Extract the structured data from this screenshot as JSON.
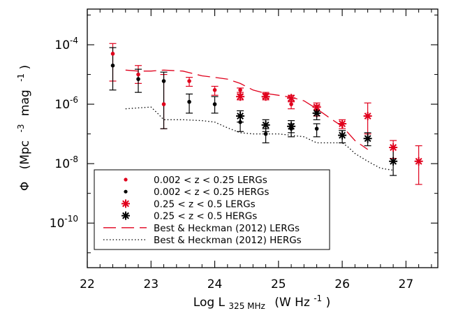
{
  "chart_data": {
    "type": "scatter",
    "x_axis": {
      "label_main": "Log L",
      "label_sub": "325 MHz",
      "label_unit": "(W Hz",
      "label_unit_sup": "-1",
      "label_unit_close": ")",
      "range": [
        22,
        27.5
      ],
      "ticks": [
        22,
        23,
        24,
        25,
        26,
        27
      ],
      "tick_labels": [
        "22",
        "23",
        "24",
        "25",
        "26",
        "27"
      ]
    },
    "y_axis": {
      "label_symbol": "Φ",
      "label_unit": "(Mpc",
      "label_exp1": "-3",
      "label_mid": "mag",
      "label_exp2": "-1",
      "label_close": ")",
      "scale": "log",
      "range_log10": [
        -11.5,
        -2.8
      ],
      "ticks_log10": [
        -10,
        -8,
        -6,
        -4
      ],
      "tick_label_base": "10",
      "tick_label_exps": [
        "-10",
        "-8",
        "-6",
        "-4"
      ]
    },
    "colors": {
      "red": "#e0001c",
      "black": "#000000"
    },
    "series": [
      {
        "name": "0.002 < z < 0.25 LERGs",
        "marker": "dot",
        "color": "#e0001c",
        "points": [
          {
            "x": 22.4,
            "y": 5e-05,
            "lo": 6e-06,
            "hi": 0.00011
          },
          {
            "x": 22.8,
            "y": 1e-05,
            "lo": 5e-06,
            "hi": 2e-05
          },
          {
            "x": 23.2,
            "y": 1e-06,
            "lo": 1.5e-07,
            "hi": 1e-05
          },
          {
            "x": 23.6,
            "y": 6e-06,
            "lo": 4e-06,
            "hi": 8e-06
          },
          {
            "x": 24.0,
            "y": 3e-06,
            "lo": 2e-06,
            "hi": 4e-06
          },
          {
            "x": 24.4,
            "y": 3e-06,
            "lo": 2.5e-06,
            "hi": 3.5e-06
          },
          {
            "x": 24.8,
            "y": 2e-06,
            "lo": 1.6e-06,
            "hi": 2.5e-06
          },
          {
            "x": 25.2,
            "y": 1e-06,
            "lo": 7e-07,
            "hi": 1.3e-06
          },
          {
            "x": 25.6,
            "y": 6e-07,
            "lo": 4e-07,
            "hi": 9e-07
          }
        ]
      },
      {
        "name": "0.002 < z < 0.25 HERGs",
        "marker": "dot",
        "color": "#000000",
        "points": [
          {
            "x": 22.4,
            "y": 2e-05,
            "lo": 3e-06,
            "hi": 8e-05
          },
          {
            "x": 22.8,
            "y": 7e-06,
            "lo": 2.5e-06,
            "hi": 1.5e-05
          },
          {
            "x": 23.2,
            "y": 6e-06,
            "lo": 1.5e-07,
            "hi": 1.2e-05
          },
          {
            "x": 23.6,
            "y": 1.2e-06,
            "lo": 5e-07,
            "hi": 2.2e-06
          },
          {
            "x": 24.0,
            "y": 1e-06,
            "lo": 5e-07,
            "hi": 1.8e-06
          },
          {
            "x": 24.4,
            "y": 2.5e-07,
            "lo": 1.2e-07,
            "hi": 4e-07
          },
          {
            "x": 24.8,
            "y": 1e-07,
            "lo": 5e-08,
            "hi": 1.5e-07
          },
          {
            "x": 25.2,
            "y": 1.5e-07,
            "lo": 8e-08,
            "hi": 2.2e-07
          },
          {
            "x": 25.6,
            "y": 1.5e-07,
            "lo": 8e-08,
            "hi": 2.2e-07
          }
        ]
      },
      {
        "name": "0.25 < z < 0.5 LERGs",
        "marker": "star",
        "color": "#e0001c",
        "points": [
          {
            "x": 24.4,
            "y": 1.8e-06,
            "lo": 1.4e-06,
            "hi": 2.2e-06
          },
          {
            "x": 24.8,
            "y": 1.8e-06,
            "lo": 1.4e-06,
            "hi": 2.3e-06
          },
          {
            "x": 25.2,
            "y": 1.6e-06,
            "lo": 1.2e-06,
            "hi": 2e-06
          },
          {
            "x": 25.6,
            "y": 8e-07,
            "lo": 5e-07,
            "hi": 1.1e-06
          },
          {
            "x": 26.0,
            "y": 2.2e-07,
            "lo": 1.5e-07,
            "hi": 3e-07
          },
          {
            "x": 26.4,
            "y": 4e-07,
            "lo": 1e-07,
            "hi": 1.1e-06
          },
          {
            "x": 26.8,
            "y": 3.5e-08,
            "lo": 1.5e-08,
            "hi": 6e-08
          },
          {
            "x": 27.2,
            "y": 1.2e-08,
            "lo": 2e-09,
            "hi": 4e-08
          }
        ]
      },
      {
        "name": "0.25 < z < 0.5 HERGs",
        "marker": "star",
        "color": "#000000",
        "points": [
          {
            "x": 24.4,
            "y": 4e-07,
            "lo": 2.5e-07,
            "hi": 6e-07
          },
          {
            "x": 24.8,
            "y": 2e-07,
            "lo": 1.2e-07,
            "hi": 3e-07
          },
          {
            "x": 25.2,
            "y": 1.8e-07,
            "lo": 1.1e-07,
            "hi": 2.8e-07
          },
          {
            "x": 25.6,
            "y": 5e-07,
            "lo": 3e-07,
            "hi": 8e-07
          },
          {
            "x": 26.0,
            "y": 9e-08,
            "lo": 5e-08,
            "hi": 1.3e-07
          },
          {
            "x": 26.4,
            "y": 7e-08,
            "lo": 4e-08,
            "hi": 1.1e-07
          },
          {
            "x": 26.8,
            "y": 1.2e-08,
            "lo": 4e-09,
            "hi": 3.5e-08
          }
        ]
      },
      {
        "name": "Best & Heckman (2012) LERGs",
        "marker": "dashed-line",
        "color": "#e0001c",
        "points": [
          {
            "x": 22.6,
            "y": 1.4e-05
          },
          {
            "x": 22.8,
            "y": 1.3e-05
          },
          {
            "x": 23.0,
            "y": 1.3e-05
          },
          {
            "x": 23.2,
            "y": 1.4e-05
          },
          {
            "x": 23.5,
            "y": 1.3e-05
          },
          {
            "x": 23.8,
            "y": 9e-06
          },
          {
            "x": 24.0,
            "y": 8e-06
          },
          {
            "x": 24.2,
            "y": 7e-06
          },
          {
            "x": 24.4,
            "y": 5e-06
          },
          {
            "x": 24.6,
            "y": 3e-06
          },
          {
            "x": 24.8,
            "y": 2.3e-06
          },
          {
            "x": 25.0,
            "y": 2e-06
          },
          {
            "x": 25.2,
            "y": 1.7e-06
          },
          {
            "x": 25.4,
            "y": 1.3e-06
          },
          {
            "x": 25.6,
            "y": 7e-07
          },
          {
            "x": 25.8,
            "y": 3.5e-07
          },
          {
            "x": 26.0,
            "y": 1.8e-07
          },
          {
            "x": 26.2,
            "y": 6e-08
          },
          {
            "x": 26.4,
            "y": 3e-08
          }
        ]
      },
      {
        "name": "Best & Heckman (2012) HERGs",
        "marker": "dotted-line",
        "color": "#000000",
        "points": [
          {
            "x": 22.6,
            "y": 7e-07
          },
          {
            "x": 22.8,
            "y": 7.5e-07
          },
          {
            "x": 23.0,
            "y": 8e-07
          },
          {
            "x": 23.1,
            "y": 5e-07
          },
          {
            "x": 23.2,
            "y": 3e-07
          },
          {
            "x": 23.5,
            "y": 3e-07
          },
          {
            "x": 23.8,
            "y": 2.8e-07
          },
          {
            "x": 24.0,
            "y": 2.5e-07
          },
          {
            "x": 24.2,
            "y": 1.6e-07
          },
          {
            "x": 24.4,
            "y": 1.1e-07
          },
          {
            "x": 24.6,
            "y": 1e-07
          },
          {
            "x": 24.8,
            "y": 1e-07
          },
          {
            "x": 25.0,
            "y": 1e-07
          },
          {
            "x": 25.2,
            "y": 9e-08
          },
          {
            "x": 25.4,
            "y": 8e-08
          },
          {
            "x": 25.6,
            "y": 5e-08
          },
          {
            "x": 25.8,
            "y": 5e-08
          },
          {
            "x": 26.0,
            "y": 5e-08
          },
          {
            "x": 26.1,
            "y": 3.5e-08
          },
          {
            "x": 26.2,
            "y": 2.2e-08
          },
          {
            "x": 26.4,
            "y": 1.2e-08
          },
          {
            "x": 26.6,
            "y": 7e-09
          },
          {
            "x": 26.8,
            "y": 6e-09
          }
        ]
      }
    ],
    "legend": {
      "placement": "bottom-left",
      "entries": [
        "0.002 < z < 0.25 LERGs",
        "0.002 < z < 0.25 HERGs",
        "0.25 < z < 0.5 LERGs",
        "0.25 < z < 0.5 HERGs",
        "Best & Heckman (2012) LERGs",
        "Best & Heckman (2012) HERGs"
      ]
    }
  }
}
